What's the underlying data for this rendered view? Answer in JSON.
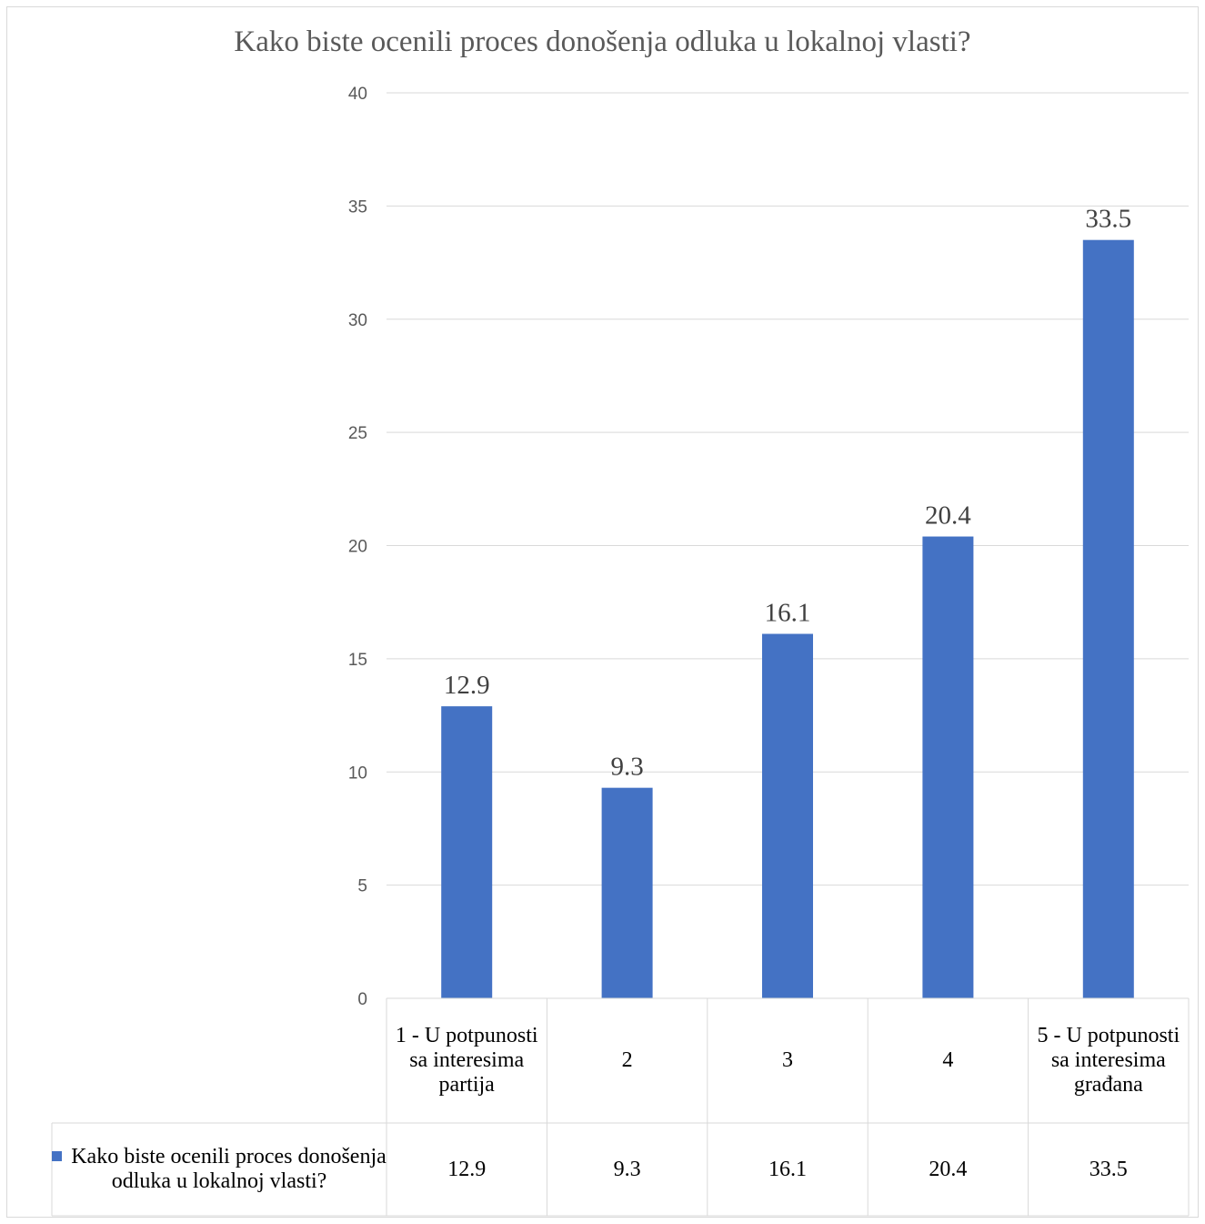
{
  "colors": {
    "bar": "#4472c4",
    "grid": "#d9d9d9",
    "text": "#595959"
  },
  "chart_data": {
    "type": "bar",
    "title": "Kako biste ocenili proces donošenja odluka u lokalnoj vlasti?",
    "categories": [
      "1 - U potpunosti sa interesima partija",
      "2",
      "3",
      "4",
      "5 - U potpunosti sa interesima građana"
    ],
    "series": [
      {
        "name": "Kako biste ocenili proces donošenja odluka u lokalnoj vlasti?",
        "values": [
          12.9,
          9.3,
          16.1,
          20.4,
          33.5
        ]
      }
    ],
    "data_labels": [
      "12.9",
      "9.3",
      "16.1",
      "20.4",
      "33.5"
    ],
    "ylim": [
      0,
      40
    ],
    "yticks": [
      "0",
      "5",
      "10",
      "15",
      "20",
      "25",
      "30",
      "35",
      "40"
    ],
    "grid": true,
    "legend": "data-table"
  }
}
